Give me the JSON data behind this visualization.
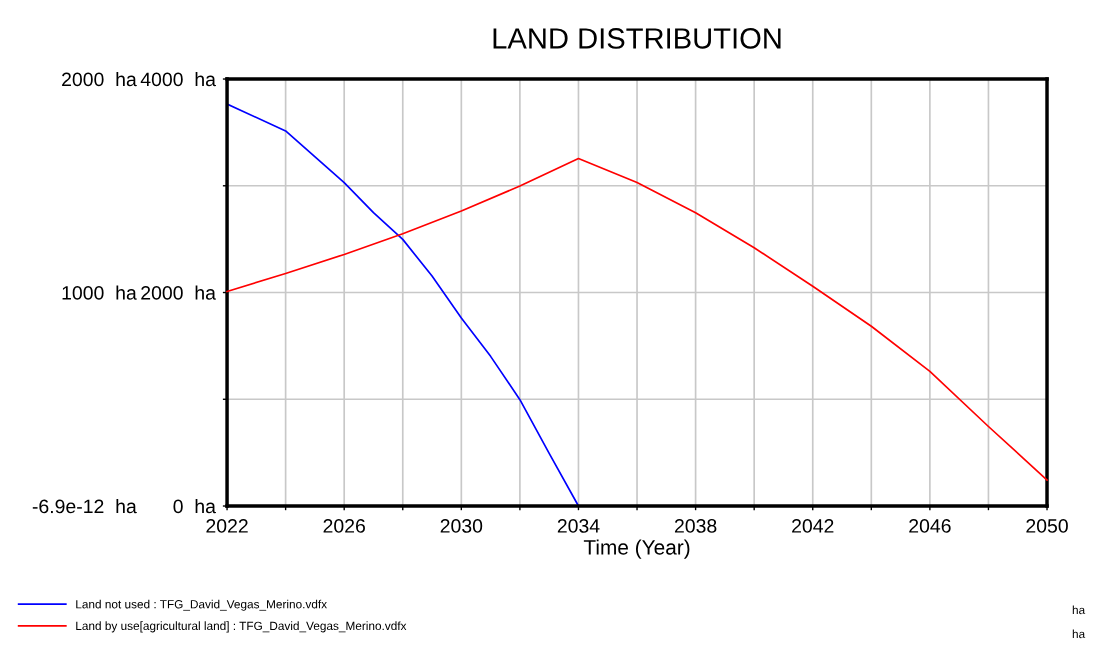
{
  "chart_data": {
    "type": "line",
    "title": "LAND DISTRIBUTION",
    "xlabel": "Time (Year)",
    "xlim": [
      2022,
      2050
    ],
    "xticks": [
      2022,
      {
        "value": 2024,
        "label": null
      },
      2026,
      {
        "value": 2028,
        "label": null
      },
      2030,
      {
        "value": 2032,
        "label": null
      },
      2034,
      {
        "value": 2036,
        "label": null
      },
      2038,
      {
        "value": 2040,
        "label": null
      },
      2042,
      {
        "value": 2044,
        "label": null
      },
      2046,
      {
        "value": 2048,
        "label": null
      },
      2050
    ],
    "ylim": [
      -6.9e-12,
      2000
    ],
    "yticks": [
      {
        "value": -6.9e-12,
        "label": "-6.9e-12  ha"
      },
      {
        "value": 500,
        "label": null
      },
      {
        "value": 1000,
        "label": "1000  ha"
      },
      {
        "value": 1500,
        "label": null
      },
      {
        "value": 2000,
        "label": "2000  ha"
      }
    ],
    "y2lim": [
      0,
      4000
    ],
    "y2ticks": [
      {
        "value": 0,
        "label": "0  ha"
      },
      {
        "value": 2000,
        "label": "2000  ha"
      },
      {
        "value": 4000,
        "label": "4000  ha"
      }
    ],
    "grid": true,
    "legend": "bottom",
    "marker": "none",
    "line_style": "solid",
    "annotations": [
      "ha",
      "ha"
    ],
    "series": [
      {
        "name": "Land not used : TFG_David_Vegas_Merino.vdfx",
        "color": "#0000ff",
        "x": [
          2022,
          2024,
          2026,
          2027,
          2028,
          2029,
          2030,
          2031,
          2032,
          2033,
          2034,
          2050
        ],
        "values": [
          1883,
          1757,
          1515,
          1374,
          1249,
          1077,
          881,
          701,
          498,
          247,
          0,
          0
        ]
      },
      {
        "name": "Land by use[agricultural land] : TFG_David_Vegas_Merino.vdfx",
        "color": "#ff0000",
        "axis": "y2",
        "x": [
          2022,
          2024,
          2026,
          2028,
          2030,
          2032,
          2034,
          2036,
          2038,
          2040,
          2042,
          2044,
          2046,
          2048,
          2050
        ],
        "values": [
          2010,
          2178,
          2357,
          2551,
          2763,
          2998,
          3255,
          3030,
          2748,
          2420,
          2059,
          1684,
          1261,
          745,
          244
        ]
      }
    ]
  }
}
